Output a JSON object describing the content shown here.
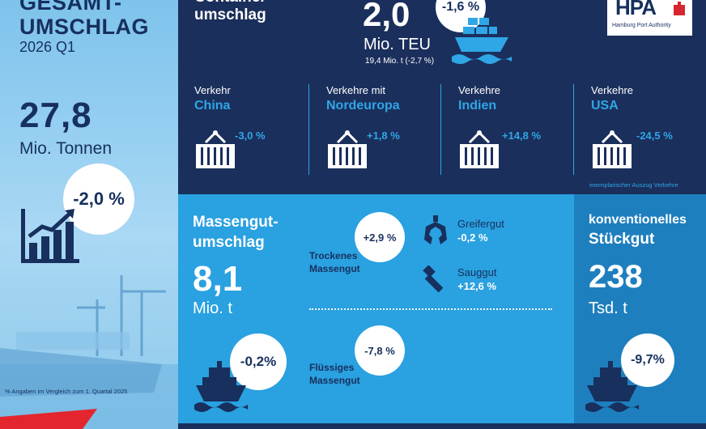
{
  "left": {
    "title_line1": "GESAMT-",
    "title_line2": "UMSCHLAG",
    "period": "2026 Q1",
    "value": "27,8",
    "unit": "Mio. Tonnen",
    "change": "-2,0 %",
    "footnote": "% Angaben im Vergleich zum 1. Quartal 2025"
  },
  "container": {
    "title_line1": "Container-",
    "title_line2": "umschlag",
    "value": "2,0",
    "unit": "Mio. TEU",
    "sub": "19,4 Mio. t (-2,7 %)",
    "change": "-1,6 %"
  },
  "logo": {
    "letters": "HPA",
    "name": "Hamburg Port Authority"
  },
  "traffic": [
    {
      "label": "Verkehr",
      "region": "China",
      "change": "-3,0 %"
    },
    {
      "label": "Verkehre mit",
      "region": "Nordeuropa",
      "change": "+1,8 %"
    },
    {
      "label": "Verkehre",
      "region": "Indien",
      "change": "+14,8 %"
    },
    {
      "label": "Verkehre",
      "region": "USA",
      "change": "-24,5 %"
    }
  ],
  "traffic_note": "exemplarischer Auszug Verkehre",
  "bulk": {
    "title_line1": "Massengut-",
    "title_line2": "umschlag",
    "value": "8,1",
    "unit": "Mio. t",
    "change": "-0,2%",
    "dry": {
      "label_line1": "Trockenes",
      "label_line2": "Massengut",
      "change": "+2,9 %"
    },
    "grab": {
      "label": "Greifergut",
      "change": "-0,2 %"
    },
    "suction": {
      "label": "Sauggut",
      "change": "+12,6 %"
    },
    "liquid": {
      "label_line1": "Flüssiges",
      "label_line2": "Massengut",
      "change": "-7,8 %"
    }
  },
  "general": {
    "title_line1": "konventionelles",
    "title_line2": "Stückgut",
    "value": "238",
    "unit": "Tsd. t",
    "change": "-9,7%"
  }
}
